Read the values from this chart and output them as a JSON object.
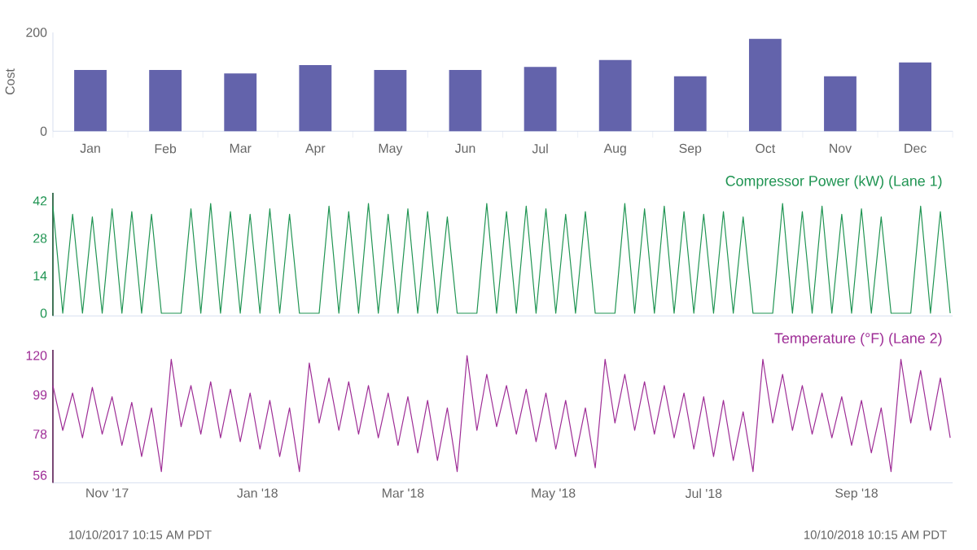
{
  "chart_data": [
    {
      "type": "bar",
      "ylabel": "Cost",
      "categories": [
        "Jan",
        "Feb",
        "Mar",
        "Apr",
        "May",
        "Jun",
        "Jul",
        "Aug",
        "Sep",
        "Oct",
        "Nov",
        "Dec"
      ],
      "values": [
        124,
        124,
        117,
        134,
        124,
        124,
        130,
        144,
        111,
        187,
        111,
        139
      ],
      "color": "#6363ab",
      "ylim": [
        0,
        200
      ],
      "yticks": [
        0,
        200
      ]
    },
    {
      "type": "line",
      "tick_labels": "y",
      "xlim": [
        "2017-10-10",
        "2018-10-10"
      ],
      "ylim": [
        -1,
        45
      ],
      "yticks": [
        0,
        14,
        28,
        42
      ],
      "series": [
        {
          "name": "Compressor Power (kW) (Lane 1)",
          "color": "#1f9452",
          "x": [
            "2017-10-10",
            "2017-10-14",
            "2017-10-18",
            "2017-10-22",
            "2017-10-26",
            "2017-10-30",
            "2017-11-03",
            "2017-11-07",
            "2017-11-11",
            "2017-11-15",
            "2017-11-19",
            "2017-11-23",
            "2017-11-27",
            "2017-12-01",
            "2017-12-05",
            "2017-12-09",
            "2017-12-13",
            "2017-12-17",
            "2017-12-21",
            "2017-12-25",
            "2017-12-29",
            "2018-01-02",
            "2018-01-06",
            "2018-01-10",
            "2018-01-14",
            "2018-01-18",
            "2018-01-22",
            "2018-01-26",
            "2018-01-30",
            "2018-02-03",
            "2018-02-07",
            "2018-02-11",
            "2018-02-15",
            "2018-02-19",
            "2018-02-23",
            "2018-02-27",
            "2018-03-03",
            "2018-03-07",
            "2018-03-11",
            "2018-03-15",
            "2018-03-19",
            "2018-03-23",
            "2018-03-27",
            "2018-03-31",
            "2018-04-04",
            "2018-04-08",
            "2018-04-12",
            "2018-04-16",
            "2018-04-20",
            "2018-04-24",
            "2018-04-28",
            "2018-05-02",
            "2018-05-06",
            "2018-05-10",
            "2018-05-14",
            "2018-05-18",
            "2018-05-22",
            "2018-05-26",
            "2018-05-30",
            "2018-06-03",
            "2018-06-07",
            "2018-06-11",
            "2018-06-15",
            "2018-06-19",
            "2018-06-23",
            "2018-06-27",
            "2018-07-01",
            "2018-07-05",
            "2018-07-09",
            "2018-07-13",
            "2018-07-17",
            "2018-07-21",
            "2018-07-25",
            "2018-07-29",
            "2018-08-02",
            "2018-08-06",
            "2018-08-10",
            "2018-08-14",
            "2018-08-18",
            "2018-08-22",
            "2018-08-26",
            "2018-08-30",
            "2018-09-03",
            "2018-09-07",
            "2018-09-11",
            "2018-09-15",
            "2018-09-19",
            "2018-09-23",
            "2018-09-27",
            "2018-10-01",
            "2018-10-05",
            "2018-10-09"
          ],
          "values": [
            40,
            0,
            37,
            0,
            36,
            0,
            39,
            0,
            38,
            0,
            37,
            0,
            0,
            0,
            39,
            0,
            41,
            0,
            38,
            0,
            37,
            0,
            39,
            0,
            37,
            0,
            0,
            0,
            40,
            0,
            38,
            0,
            41,
            0,
            37,
            0,
            39,
            0,
            38,
            0,
            36,
            0,
            0,
            0,
            41,
            0,
            38,
            0,
            40,
            0,
            39,
            0,
            37,
            0,
            38,
            0,
            0,
            0,
            41,
            0,
            39,
            0,
            40,
            0,
            38,
            0,
            37,
            0,
            38,
            0,
            36,
            0,
            0,
            0,
            41,
            0,
            38,
            0,
            40,
            0,
            37,
            0,
            39,
            0,
            36,
            0,
            0,
            0,
            40,
            0,
            38,
            0
          ]
        }
      ]
    },
    {
      "type": "line",
      "xlim": [
        "2017-10-10",
        "2018-10-10"
      ],
      "ylim": [
        52,
        123
      ],
      "yticks": [
        56,
        78,
        99,
        120
      ],
      "xticks": [
        {
          "value": "2017-11-01",
          "label": "Nov '17"
        },
        {
          "value": "2018-01-01",
          "label": "Jan '18"
        },
        {
          "value": "2018-03-01",
          "label": "Mar '18"
        },
        {
          "value": "2018-05-01",
          "label": "May '18"
        },
        {
          "value": "2018-07-01",
          "label": "Jul '18"
        },
        {
          "value": "2018-09-01",
          "label": "Sep '18"
        }
      ],
      "annotations": [
        "10/10/2017 10:15 AM PDT",
        "10/10/2018 10:15 AM PDT"
      ],
      "series": [
        {
          "name": "Temperature (°F) (Lane 2)",
          "color": "#9e2d96",
          "x": [
            "2017-10-10",
            "2017-10-14",
            "2017-10-18",
            "2017-10-22",
            "2017-10-26",
            "2017-10-30",
            "2017-11-03",
            "2017-11-07",
            "2017-11-11",
            "2017-11-15",
            "2017-11-19",
            "2017-11-23",
            "2017-11-27",
            "2017-12-01",
            "2017-12-05",
            "2017-12-09",
            "2017-12-13",
            "2017-12-17",
            "2017-12-21",
            "2017-12-25",
            "2017-12-29",
            "2018-01-02",
            "2018-01-06",
            "2018-01-10",
            "2018-01-14",
            "2018-01-18",
            "2018-01-22",
            "2018-01-26",
            "2018-01-30",
            "2018-02-03",
            "2018-02-07",
            "2018-02-11",
            "2018-02-15",
            "2018-02-19",
            "2018-02-23",
            "2018-02-27",
            "2018-03-03",
            "2018-03-07",
            "2018-03-11",
            "2018-03-15",
            "2018-03-19",
            "2018-03-23",
            "2018-03-27",
            "2018-03-31",
            "2018-04-04",
            "2018-04-08",
            "2018-04-12",
            "2018-04-16",
            "2018-04-20",
            "2018-04-24",
            "2018-04-28",
            "2018-05-02",
            "2018-05-06",
            "2018-05-10",
            "2018-05-14",
            "2018-05-18",
            "2018-05-22",
            "2018-05-26",
            "2018-05-30",
            "2018-06-03",
            "2018-06-07",
            "2018-06-11",
            "2018-06-15",
            "2018-06-19",
            "2018-06-23",
            "2018-06-27",
            "2018-07-01",
            "2018-07-05",
            "2018-07-09",
            "2018-07-13",
            "2018-07-17",
            "2018-07-21",
            "2018-07-25",
            "2018-07-29",
            "2018-08-02",
            "2018-08-06",
            "2018-08-10",
            "2018-08-14",
            "2018-08-18",
            "2018-08-22",
            "2018-08-26",
            "2018-08-30",
            "2018-09-03",
            "2018-09-07",
            "2018-09-11",
            "2018-09-15",
            "2018-09-19",
            "2018-09-23",
            "2018-09-27",
            "2018-10-01",
            "2018-10-05",
            "2018-10-09"
          ],
          "values": [
            104,
            80,
            100,
            76,
            103,
            78,
            98,
            72,
            95,
            66,
            92,
            58,
            118,
            82,
            104,
            78,
            106,
            76,
            102,
            74,
            100,
            70,
            96,
            66,
            92,
            58,
            116,
            84,
            108,
            80,
            106,
            78,
            104,
            76,
            100,
            72,
            98,
            68,
            96,
            64,
            92,
            58,
            120,
            80,
            110,
            82,
            104,
            78,
            102,
            74,
            100,
            70,
            96,
            66,
            92,
            60,
            118,
            84,
            110,
            80,
            106,
            78,
            104,
            76,
            100,
            70,
            98,
            66,
            96,
            64,
            90,
            58,
            118,
            84,
            110,
            80,
            104,
            78,
            100,
            76,
            98,
            72,
            96,
            68,
            92,
            58,
            118,
            84,
            112,
            80,
            108,
            76
          ]
        }
      ]
    }
  ]
}
